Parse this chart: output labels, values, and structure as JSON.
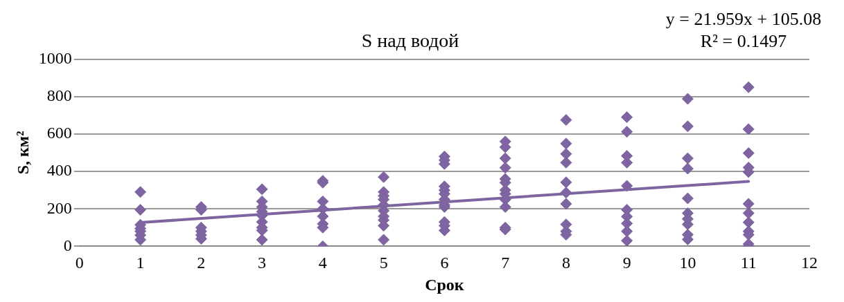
{
  "chart_data": {
    "type": "scatter",
    "title": "S над водой",
    "xlabel": "Срок",
    "ylabel": "S, км²",
    "annotations": [
      "y = 21.959x + 105.08",
      "R² = 0.1497"
    ],
    "xlim": [
      0,
      12
    ],
    "xticks": [
      0,
      1,
      2,
      3,
      4,
      5,
      6,
      7,
      8,
      9,
      10,
      11,
      12
    ],
    "ylim": [
      0,
      1000
    ],
    "yticks": [
      0,
      200,
      400,
      600,
      800,
      1000
    ],
    "grid": "y",
    "legend": false,
    "marker": "diamond",
    "series": [
      {
        "color": "#7e64a0",
        "x": [
          1,
          1,
          1,
          1,
          1,
          1,
          1,
          2,
          2,
          2,
          2,
          2,
          2,
          3,
          3,
          3,
          3,
          3,
          3,
          3,
          3,
          3,
          4,
          4,
          4,
          4,
          4,
          4,
          4,
          4,
          5,
          5,
          5,
          5,
          5,
          5,
          5,
          5,
          5,
          5,
          6,
          6,
          6,
          6,
          6,
          6,
          6,
          6,
          6,
          6,
          6,
          6,
          7,
          7,
          7,
          7,
          7,
          7,
          7,
          7,
          7,
          7,
          7,
          7,
          8,
          8,
          8,
          8,
          8,
          8,
          8,
          8,
          8,
          8,
          9,
          9,
          9,
          9,
          9,
          9,
          9,
          9,
          9,
          9,
          10,
          10,
          10,
          10,
          10,
          10,
          10,
          10,
          10,
          10,
          11,
          11,
          11,
          11,
          11,
          11,
          11,
          11,
          11,
          11,
          11,
          11
        ],
        "values": [
          290,
          195,
          115,
          95,
          80,
          60,
          35,
          210,
          195,
          100,
          80,
          60,
          40,
          305,
          240,
          210,
          185,
          165,
          130,
          100,
          85,
          35,
          350,
          340,
          240,
          200,
          160,
          120,
          100,
          0,
          370,
          290,
          270,
          250,
          220,
          190,
          160,
          140,
          110,
          35,
          480,
          460,
          440,
          320,
          300,
          280,
          250,
          220,
          210,
          130,
          110,
          85,
          560,
          530,
          470,
          420,
          360,
          340,
          300,
          280,
          250,
          210,
          100,
          90,
          675,
          549,
          494,
          447,
          342,
          287,
          227,
          117,
          80,
          62,
          690,
          612,
          483,
          447,
          323,
          195,
          159,
          122,
          80,
          30,
          788,
          641,
          470,
          415,
          256,
          177,
          146,
          117,
          62,
          37,
          850,
          626,
          498,
          421,
          397,
          227,
          177,
          128,
          80,
          62,
          12,
          0
        ]
      },
      {
        "type": "line",
        "color": "#7e64a0",
        "marker": "none",
        "x": [
          1,
          11
        ],
        "values": [
          127.04,
          346.63
        ]
      }
    ]
  }
}
